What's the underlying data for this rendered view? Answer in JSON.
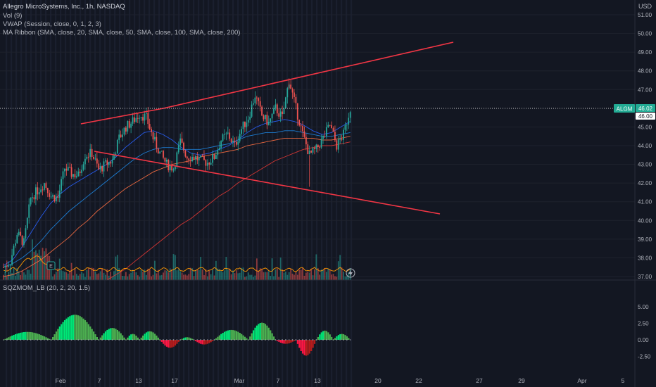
{
  "header": {
    "symbol_line": "Allegro MicroSystems, Inc., 1h, NASDAQ",
    "vol_line": "Vol (9)",
    "vwap_line": "VWAP (Session, close, 0, 1, 2, 3)",
    "ma_line": "MA Ribbon (SMA, close, 20, SMA, close, 50, SMA, close, 100, SMA, close, 200)"
  },
  "lower_panel": {
    "label": "SQZMOM_LB (20, 2, 20, 1.5)"
  },
  "currency": "USD",
  "colors": {
    "background": "#131722",
    "up": "#26a69a",
    "down": "#ef5350",
    "trendline": "#f23645",
    "vwap": "#ff9800",
    "ma20": "#2962ff",
    "ma50": "#1e88e5",
    "ma100": "#ff7043",
    "ma200": "#e53935",
    "mom_up": "#00e676",
    "mom_down": "#ff1744",
    "last_price": "#22ab94"
  },
  "chart_data": {
    "type": "candlestick",
    "y_ticks": [
      "51.00",
      "50.00",
      "49.00",
      "48.00",
      "47.00",
      "45.00",
      "44.00",
      "43.00",
      "42.00",
      "41.00",
      "40.00",
      "39.00",
      "38.00",
      "37.00"
    ],
    "ylim": [
      37,
      51.5
    ],
    "x_ticks": [
      "Feb",
      "7",
      "13",
      "17",
      "Mar",
      "7",
      "13",
      "20",
      "22",
      "27",
      "29",
      "Apr",
      "5"
    ],
    "last_price_label": "ALGM",
    "last_price": "46.02",
    "prior_level": "46.00",
    "close_path": [
      {
        "t": 0,
        "v": 37.5
      },
      {
        "t": 2,
        "v": 37.8
      },
      {
        "t": 4,
        "v": 39.3
      },
      {
        "t": 6,
        "v": 38.8
      },
      {
        "t": 8,
        "v": 41.2
      },
      {
        "t": 10,
        "v": 41.6
      },
      {
        "t": 12,
        "v": 42.0
      },
      {
        "t": 14,
        "v": 41.3
      },
      {
        "t": 16,
        "v": 41.2
      },
      {
        "t": 18,
        "v": 42.8
      },
      {
        "t": 20,
        "v": 42.5
      },
      {
        "t": 22,
        "v": 42.4
      },
      {
        "t": 24,
        "v": 43.5
      },
      {
        "t": 26,
        "v": 43.6
      },
      {
        "t": 28,
        "v": 42.7
      },
      {
        "t": 30,
        "v": 43.0
      },
      {
        "t": 32,
        "v": 43.2
      },
      {
        "t": 34,
        "v": 44.4
      },
      {
        "t": 36,
        "v": 45.0
      },
      {
        "t": 38,
        "v": 45.3
      },
      {
        "t": 40,
        "v": 45.7
      },
      {
        "t": 42,
        "v": 45.5
      },
      {
        "t": 44,
        "v": 44.4
      },
      {
        "t": 46,
        "v": 43.6
      },
      {
        "t": 48,
        "v": 43.0
      },
      {
        "t": 50,
        "v": 42.8
      },
      {
        "t": 52,
        "v": 44.2
      },
      {
        "t": 54,
        "v": 43.4
      },
      {
        "t": 56,
        "v": 43.4
      },
      {
        "t": 58,
        "v": 43.2
      },
      {
        "t": 60,
        "v": 43.1
      },
      {
        "t": 62,
        "v": 43.4
      },
      {
        "t": 64,
        "v": 44.3
      },
      {
        "t": 66,
        "v": 44.6
      },
      {
        "t": 68,
        "v": 44.0
      },
      {
        "t": 70,
        "v": 44.9
      },
      {
        "t": 72,
        "v": 45.5
      },
      {
        "t": 74,
        "v": 46.7
      },
      {
        "t": 76,
        "v": 45.6
      },
      {
        "t": 78,
        "v": 45.2
      },
      {
        "t": 80,
        "v": 46.0
      },
      {
        "t": 82,
        "v": 45.5
      },
      {
        "t": 84,
        "v": 47.5
      },
      {
        "t": 86,
        "v": 46.0
      },
      {
        "t": 88,
        "v": 44.6
      },
      {
        "t": 90,
        "v": 43.5
      },
      {
        "t": 92,
        "v": 43.8
      },
      {
        "t": 94,
        "v": 44.4
      },
      {
        "t": 96,
        "v": 45.1
      },
      {
        "t": 98,
        "v": 44.0
      },
      {
        "t": 100,
        "v": 44.6
      },
      {
        "t": 102,
        "v": 46.0
      }
    ],
    "moving_averages": [
      {
        "name": "MA20",
        "color": "#2962ff",
        "values": [
          37.6,
          37.9,
          38.6,
          39.4,
          40.2,
          40.9,
          41.4,
          41.8,
          42.1,
          42.4,
          42.7,
          43.0,
          43.4,
          43.9,
          44.3,
          44.7,
          44.8,
          44.6,
          44.3,
          43.9,
          43.6,
          43.5,
          43.6,
          43.8,
          44.0,
          44.3,
          44.7,
          45.0,
          45.2,
          45.3,
          45.4,
          45.3,
          45.1,
          44.8,
          44.6,
          44.7,
          45.0,
          45.3
        ]
      },
      {
        "name": "MA50",
        "color": "#1e88e5",
        "values": [
          37.5,
          37.7,
          38.0,
          38.4,
          38.9,
          39.5,
          40.0,
          40.5,
          40.9,
          41.3,
          41.7,
          42.1,
          42.5,
          42.9,
          43.3,
          43.6,
          43.8,
          43.9,
          43.9,
          43.8,
          43.8,
          43.8,
          43.9,
          44.0,
          44.1,
          44.3,
          44.5,
          44.6,
          44.7,
          44.7,
          44.8,
          44.8,
          44.7,
          44.6,
          44.5,
          44.5,
          44.6,
          44.7
        ]
      },
      {
        "name": "MA100",
        "color": "#ff7043",
        "values": [
          37.0,
          37.1,
          37.3,
          37.6,
          37.9,
          38.3,
          38.7,
          39.1,
          39.6,
          40.0,
          40.5,
          40.9,
          41.3,
          41.7,
          42.0,
          42.3,
          42.6,
          42.8,
          43.0,
          43.1,
          43.2,
          43.4,
          43.5,
          43.6,
          43.7,
          43.8,
          44.0,
          44.1,
          44.2,
          44.3,
          44.4,
          44.4,
          44.4,
          44.4,
          44.3,
          44.3,
          44.4,
          44.5
        ]
      },
      {
        "name": "MA200",
        "color": "#e53935",
        "values": [
          null,
          null,
          null,
          null,
          null,
          null,
          null,
          null,
          null,
          null,
          null,
          36.8,
          37.1,
          37.4,
          37.8,
          38.2,
          38.6,
          39.0,
          39.4,
          39.8,
          40.1,
          40.5,
          40.9,
          41.3,
          41.6,
          42.0,
          42.3,
          42.6,
          42.9,
          43.2,
          43.4,
          43.6,
          43.8,
          43.9,
          44.0,
          44.0,
          44.1,
          44.2
        ]
      }
    ],
    "trendlines": [
      {
        "from": {
          "t": 18,
          "v": 45.3
        },
        "to": {
          "t": 40,
          "v": 46.0
        }
      },
      {
        "from": {
          "t": 40,
          "v": 46.0
        },
        "to": {
          "t": 130,
          "v": 49.6
        }
      },
      {
        "from": {
          "t": 18,
          "v": 44.0
        },
        "to": {
          "t": 125,
          "v": 40.3
        }
      }
    ],
    "momentum": {
      "yticks": [
        "5.00",
        "2.50",
        "0.00",
        "-2.50"
      ],
      "ylim": [
        -3.5,
        6.5
      ]
    }
  }
}
